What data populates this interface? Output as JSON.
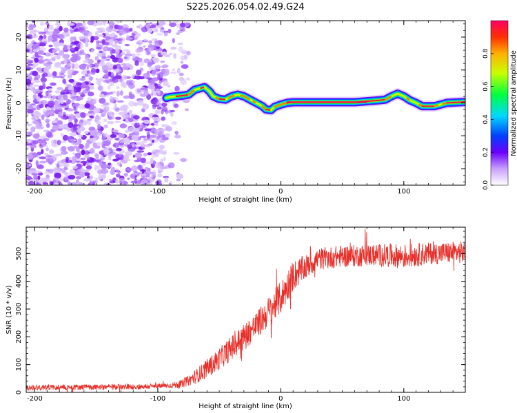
{
  "title": "S225.2026.054.02.49.G24",
  "chart_data": [
    {
      "type": "heatmap",
      "name": "spectrogram",
      "xlabel": "Height of straight line (km)",
      "ylabel": "Frequency (Hz)",
      "xlim": [
        -207,
        150
      ],
      "ylim": [
        -25,
        25
      ],
      "xticks": [
        -200,
        -100,
        0,
        100
      ],
      "yticks": [
        -20,
        -10,
        0,
        10,
        20
      ],
      "xtick_labels": [
        "-200",
        "-100",
        "0",
        "100"
      ],
      "ytick_labels": [
        "-20",
        "-10",
        "0",
        "10",
        "20"
      ],
      "noise_region_x": [
        -207,
        -75
      ],
      "ridge_x": [
        -93,
        -90,
        -85,
        -80,
        -75,
        -70,
        -65,
        -62,
        -58,
        -55,
        -50,
        -45,
        -40,
        -35,
        -30,
        -25,
        -20,
        -15,
        -12,
        -8,
        -5,
        0,
        5,
        10,
        20,
        40,
        60,
        70,
        80,
        85,
        90,
        95,
        100,
        105,
        110,
        115,
        125,
        135,
        150
      ],
      "ridge_freq": [
        1.5,
        1.8,
        2.0,
        2.2,
        2.5,
        4.0,
        4.5,
        4.8,
        3.5,
        2.0,
        1.2,
        1.0,
        2.0,
        2.5,
        2.0,
        1.0,
        0.0,
        -1.0,
        -2.0,
        -2.2,
        -1.2,
        -0.5,
        0.0,
        0.2,
        0.2,
        0.2,
        0.2,
        0.5,
        0.8,
        1.0,
        2.0,
        2.8,
        2.0,
        0.8,
        0.0,
        -1.0,
        -1.0,
        0.0,
        0.3
      ],
      "colorbar": {
        "label": "Normalized spectral amplitude",
        "range": [
          0.0,
          1.0
        ],
        "ticks": [
          0.0,
          0.2,
          0.4,
          0.6,
          0.8
        ],
        "tick_labels": [
          "0.0",
          "0.2",
          "0.4",
          "0.6",
          "0.8"
        ]
      }
    },
    {
      "type": "line",
      "name": "snr",
      "xlabel": "Height of straight line (km)",
      "ylabel": "SNR (10 * v/v)",
      "xlim": [
        -207,
        150
      ],
      "ylim": [
        0,
        595
      ],
      "xticks": [
        -200,
        -100,
        0,
        100
      ],
      "yticks": [
        0,
        100,
        200,
        300,
        400,
        500
      ],
      "xtick_labels": [
        "-200",
        "-100",
        "0",
        "100"
      ],
      "ytick_labels": [
        "0",
        "100",
        "200",
        "300",
        "400",
        "500"
      ],
      "color": "#e8302a",
      "trend_x": [
        -207,
        -120,
        -100,
        -90,
        -80,
        -70,
        -60,
        -50,
        -40,
        -30,
        -20,
        -10,
        0,
        10,
        20,
        30,
        50,
        80,
        100,
        120,
        150
      ],
      "trend_y": [
        18,
        20,
        22,
        25,
        30,
        55,
        85,
        120,
        160,
        200,
        240,
        290,
        340,
        420,
        450,
        480,
        490,
        495,
        490,
        500,
        505
      ],
      "noise_amplitude": [
        10,
        10,
        10,
        10,
        14,
        25,
        35,
        40,
        45,
        50,
        50,
        55,
        60,
        55,
        45,
        40,
        40,
        40,
        45,
        40,
        40
      ]
    }
  ]
}
